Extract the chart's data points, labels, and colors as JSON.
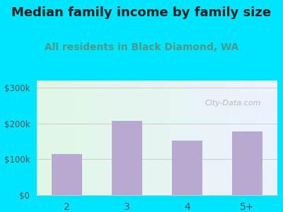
{
  "title": "Median family income by family size",
  "subtitle": "All residents in Black Diamond, WA",
  "categories": [
    "2",
    "3",
    "4",
    "5+"
  ],
  "values": [
    115000,
    207000,
    152000,
    178000
  ],
  "bar_color": "#b8a9d0",
  "title_fontsize": 13,
  "subtitle_fontsize": 10,
  "subtitle_color": "#4a9a8a",
  "title_color": "#222222",
  "tick_color": "#555555",
  "xtick_color": "#555555",
  "background_outer": "#00e5ff",
  "ylim": [
    0,
    320000
  ],
  "yticks": [
    0,
    100000,
    200000,
    300000
  ],
  "ytick_labels": [
    "$0",
    "$100k",
    "$200k",
    "$300k"
  ],
  "watermark": "City-Data.com",
  "grid_color": "#cccccc"
}
